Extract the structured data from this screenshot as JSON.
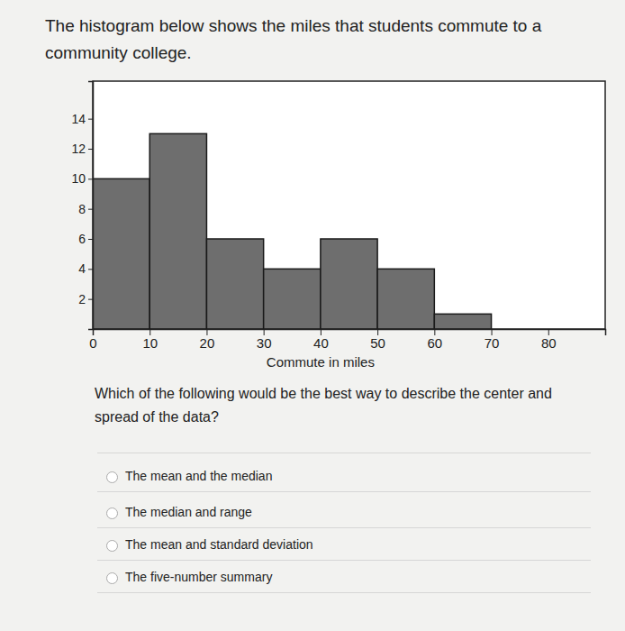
{
  "chart_data": {
    "type": "histogram",
    "title": "The histogram below shows the miles that students commute to a community college.",
    "x_label": "Commute in miles",
    "bins": [
      0,
      10,
      20,
      30,
      40,
      50,
      60,
      70
    ],
    "values": [
      10,
      13,
      6,
      4,
      6,
      4,
      1
    ],
    "color": "#6e6e6e",
    "xlim": [
      0,
      90
    ],
    "xticks": [
      0,
      10,
      20,
      30,
      40,
      50,
      60,
      70,
      80
    ],
    "ylim": [
      0,
      16.5
    ],
    "yticks": [
      2,
      4,
      6,
      8,
      10,
      12,
      14
    ]
  },
  "question": "Which of the following would be the best way to describe the center and spread of the data?",
  "options": [
    "The mean and the median",
    "The median and range",
    "The mean and standard deviation",
    "The five-number summary"
  ]
}
